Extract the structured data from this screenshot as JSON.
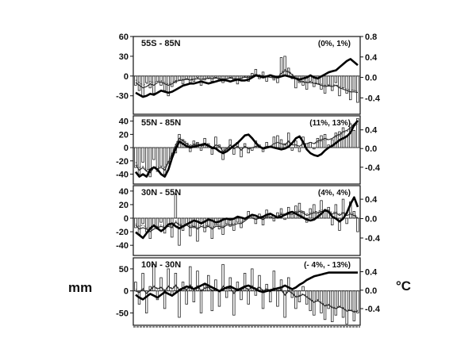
{
  "units": {
    "left": "mm",
    "right": "°C"
  },
  "chart_data": [
    {
      "type": "bar",
      "region": "55S - 85N",
      "percentages": "(0%, 1%)",
      "left_ticks": [
        "60",
        "30",
        "0",
        "-30"
      ],
      "left_tick_values": [
        60,
        30,
        0,
        -30
      ],
      "left_range": [
        -58,
        60
      ],
      "right_ticks": [
        "0.8",
        "0.4",
        "0.0",
        "-0.4"
      ],
      "right_tick_values": [
        0.8,
        0.4,
        0.0,
        -0.4
      ],
      "right_range": [
        -0.72,
        0.8
      ],
      "precip_bars": [
        -14,
        -22,
        -30,
        -10,
        -18,
        -26,
        -8,
        -14,
        -22,
        -30,
        -16,
        -10,
        -6,
        -12,
        -4,
        -10,
        -8,
        -2,
        -14,
        -6,
        -4,
        -8,
        -2,
        -6,
        -10,
        -4,
        -2,
        -6,
        -12,
        -4,
        -2,
        -8,
        4,
        10,
        -4,
        6,
        -8,
        2,
        -6,
        -10,
        28,
        30,
        12,
        -4,
        -18,
        -10,
        -14,
        -20,
        -8,
        -16,
        -12,
        -20,
        -26,
        -14,
        -22,
        -10,
        -30,
        -18,
        -26,
        -36,
        -22,
        -40
      ],
      "precip_smooth": [
        -10,
        -14,
        -18,
        -16,
        -12,
        -14,
        -10,
        -9,
        -12,
        -14,
        -12,
        -8,
        -7,
        -6,
        -5,
        -6,
        -5,
        -4,
        -5,
        -4,
        -3,
        -4,
        -3,
        -4,
        -5,
        -4,
        -3,
        -4,
        -5,
        -3,
        -2,
        -2,
        0,
        2,
        1,
        0,
        -1,
        -2,
        -3,
        -2,
        4,
        8,
        6,
        2,
        -4,
        -8,
        -9,
        -10,
        -10,
        -11,
        -12,
        -14,
        -16,
        -15,
        -16,
        -14,
        -18,
        -20,
        -22,
        -24,
        -24,
        -25
      ],
      "precip_smooth2": [
        -6,
        -10,
        -14,
        -12,
        -8,
        -10,
        -8,
        -7,
        -10,
        -12,
        -10,
        -7,
        -6,
        -5,
        -4,
        -5,
        -4,
        -3,
        -5,
        -4,
        -3,
        -3,
        -2,
        -3,
        -4,
        -4,
        -2,
        -3,
        -4,
        -3,
        -1,
        -1,
        1,
        3,
        2,
        1,
        0,
        -1,
        -2,
        -1,
        6,
        10,
        8,
        3,
        -2,
        -6,
        -8,
        -9,
        -9,
        -10,
        -11,
        -12,
        -14,
        -13,
        -14,
        -13,
        -16,
        -18,
        -20,
        -21,
        -22,
        -23
      ],
      "temp_smooth": [
        -0.3,
        -0.34,
        -0.38,
        -0.36,
        -0.32,
        -0.34,
        -0.3,
        -0.26,
        -0.28,
        -0.3,
        -0.28,
        -0.24,
        -0.2,
        -0.16,
        -0.14,
        -0.12,
        -0.12,
        -0.1,
        -0.08,
        -0.1,
        -0.12,
        -0.1,
        -0.08,
        -0.06,
        -0.05,
        -0.06,
        -0.08,
        -0.06,
        -0.04,
        -0.06,
        -0.06,
        -0.04,
        0.0,
        0.04,
        0.02,
        0.0,
        0.02,
        0.04,
        0.02,
        0.0,
        0.02,
        0.04,
        0.02,
        0.0,
        -0.02,
        -0.04,
        -0.02,
        0.0,
        0.04,
        0.0,
        -0.02,
        0.02,
        0.06,
        0.1,
        0.12,
        0.14,
        0.2,
        0.26,
        0.32,
        0.36,
        0.3,
        0.24
      ]
    },
    {
      "type": "bar",
      "region": "55N - 85N",
      "percentages": "(11%, 13%)",
      "left_ticks": [
        "40",
        "20",
        "0",
        "-20",
        "-40"
      ],
      "left_tick_values": [
        40,
        20,
        0,
        -20,
        -40
      ],
      "left_range": [
        -55,
        48
      ],
      "right_ticks": [
        "0.4",
        "0.0",
        "-0.4"
      ],
      "right_tick_values": [
        0.4,
        0.0,
        -0.4
      ],
      "right_range": [
        -0.76,
        0.7
      ],
      "precip_bars": [
        -30,
        -40,
        -22,
        -34,
        -44,
        -18,
        -36,
        -28,
        -40,
        -24,
        -12,
        -8,
        20,
        12,
        6,
        -6,
        10,
        8,
        -4,
        14,
        6,
        -10,
        16,
        4,
        -18,
        -6,
        12,
        -10,
        8,
        -14,
        6,
        -8,
        -4,
        10,
        4,
        -6,
        8,
        2,
        16,
        18,
        12,
        6,
        22,
        -4,
        10,
        -6,
        16,
        6,
        8,
        -2,
        14,
        18,
        20,
        4,
        12,
        22,
        24,
        30,
        18,
        36,
        26,
        44
      ],
      "precip_smooth": [
        -26,
        -34,
        -30,
        -36,
        -38,
        -30,
        -32,
        -30,
        -34,
        -22,
        -10,
        4,
        14,
        10,
        6,
        2,
        4,
        6,
        2,
        4,
        2,
        -2,
        4,
        2,
        -6,
        -2,
        4,
        -2,
        2,
        -4,
        2,
        -2,
        0,
        2,
        2,
        0,
        2,
        2,
        6,
        8,
        6,
        4,
        10,
        4,
        4,
        2,
        6,
        6,
        8,
        6,
        10,
        12,
        14,
        12,
        14,
        18,
        20,
        24,
        26,
        30,
        36,
        40
      ],
      "precip_smooth2": [
        -22,
        -30,
        -28,
        -32,
        -34,
        -28,
        -30,
        -28,
        -30,
        -20,
        -8,
        6,
        16,
        12,
        8,
        4,
        6,
        6,
        4,
        6,
        4,
        0,
        4,
        2,
        -4,
        0,
        4,
        0,
        2,
        -2,
        2,
        0,
        0,
        2,
        2,
        0,
        2,
        2,
        6,
        8,
        6,
        4,
        8,
        4,
        4,
        2,
        6,
        6,
        8,
        6,
        8,
        10,
        12,
        12,
        14,
        16,
        18,
        22,
        24,
        28,
        32,
        36
      ],
      "temp_smooth": [
        -0.5,
        -0.6,
        -0.55,
        -0.6,
        -0.45,
        -0.4,
        -0.45,
        -0.55,
        -0.6,
        -0.45,
        -0.2,
        0.0,
        0.15,
        0.1,
        0.05,
        0.02,
        0.04,
        0.06,
        0.08,
        0.1,
        0.06,
        0.02,
        0.0,
        -0.06,
        -0.1,
        -0.06,
        0.0,
        0.06,
        0.12,
        0.2,
        0.28,
        0.3,
        0.22,
        0.12,
        0.04,
        0.0,
        0.02,
        0.04,
        0.02,
        0.0,
        -0.02,
        0.0,
        0.04,
        0.12,
        0.22,
        0.26,
        0.14,
        -0.02,
        -0.1,
        -0.14,
        -0.16,
        -0.12,
        -0.04,
        0.02,
        0.06,
        0.12,
        0.18,
        0.22,
        0.26,
        0.34,
        0.5,
        0.6
      ]
    },
    {
      "type": "bar",
      "region": "30N - 55N",
      "percentages": "(4%, 4%)",
      "left_ticks": [
        "40",
        "20",
        "0",
        "-20",
        "-40"
      ],
      "left_tick_values": [
        40,
        20,
        0,
        -20,
        -40
      ],
      "left_range": [
        -55,
        48
      ],
      "right_ticks": [
        "0.4",
        "0.0",
        "-0.4"
      ],
      "right_tick_values": [
        0.4,
        0.0,
        -0.4
      ],
      "right_range": [
        -0.76,
        0.68
      ],
      "precip_bars": [
        -14,
        -24,
        -8,
        -20,
        -30,
        -12,
        -16,
        -6,
        -22,
        -10,
        -28,
        36,
        -40,
        -18,
        -8,
        -26,
        -14,
        -34,
        -6,
        -20,
        -12,
        -30,
        -10,
        -16,
        -24,
        -8,
        -12,
        -18,
        -6,
        -14,
        -2,
        10,
        4,
        -8,
        6,
        -10,
        12,
        2,
        -4,
        8,
        14,
        -2,
        16,
        6,
        18,
        22,
        10,
        -6,
        14,
        20,
        8,
        26,
        12,
        16,
        -10,
        20,
        -18,
        28,
        -8,
        24,
        10,
        -20
      ],
      "precip_smooth": [
        -10,
        -16,
        -14,
        -16,
        -20,
        -16,
        -14,
        -12,
        -14,
        -12,
        -14,
        -6,
        -10,
        -12,
        -10,
        -14,
        -12,
        -16,
        -12,
        -14,
        -12,
        -16,
        -12,
        -12,
        -14,
        -10,
        -10,
        -10,
        -8,
        -8,
        -4,
        0,
        0,
        -2,
        0,
        -2,
        2,
        2,
        0,
        2,
        6,
        4,
        6,
        6,
        8,
        10,
        8,
        4,
        6,
        8,
        8,
        10,
        10,
        10,
        6,
        8,
        4,
        8,
        4,
        6,
        4,
        0
      ],
      "precip_smooth2": [
        -8,
        -12,
        -10,
        -14,
        -18,
        -14,
        -12,
        -10,
        -12,
        -10,
        -12,
        -4,
        -8,
        -10,
        -8,
        -12,
        -10,
        -14,
        -10,
        -12,
        -10,
        -14,
        -10,
        -10,
        -12,
        -8,
        -8,
        -8,
        -6,
        -6,
        -2,
        2,
        2,
        0,
        2,
        0,
        4,
        4,
        2,
        4,
        8,
        6,
        8,
        8,
        10,
        12,
        10,
        6,
        8,
        10,
        10,
        12,
        12,
        12,
        8,
        10,
        6,
        10,
        6,
        8,
        6,
        2
      ],
      "temp_smooth": [
        -0.28,
        -0.34,
        -0.4,
        -0.3,
        -0.2,
        -0.14,
        -0.2,
        -0.26,
        -0.2,
        -0.12,
        -0.1,
        -0.16,
        -0.2,
        -0.16,
        -0.12,
        -0.08,
        -0.04,
        -0.06,
        -0.1,
        -0.06,
        -0.02,
        -0.04,
        -0.08,
        -0.06,
        -0.02,
        0.0,
        -0.02,
        0.0,
        0.04,
        0.02,
        0.0,
        0.04,
        0.08,
        0.06,
        0.02,
        0.04,
        0.08,
        0.1,
        0.06,
        0.02,
        0.04,
        0.08,
        0.12,
        0.14,
        0.1,
        0.06,
        0.02,
        -0.02,
        -0.04,
        -0.02,
        0.04,
        0.1,
        0.18,
        0.14,
        0.04,
        0.0,
        -0.06,
        0.0,
        0.12,
        0.3,
        0.44,
        0.24
      ]
    },
    {
      "type": "bar",
      "region": "10N - 30N",
      "percentages": "(- 4%, - 13%)",
      "left_ticks": [
        "50",
        "0",
        "-50"
      ],
      "left_tick_values": [
        50,
        0,
        -50
      ],
      "left_range": [
        -78,
        75
      ],
      "right_ticks": [
        "0.4",
        "0.0",
        "-0.4"
      ],
      "right_tick_values": [
        0.4,
        0.0,
        -0.4
      ],
      "right_range": [
        -0.76,
        0.7
      ],
      "precip_bars": [
        20,
        -30,
        40,
        -50,
        10,
        60,
        -20,
        30,
        -40,
        50,
        -10,
        40,
        -60,
        20,
        -30,
        55,
        -25,
        45,
        -50,
        15,
        35,
        -45,
        25,
        -35,
        60,
        -15,
        30,
        -55,
        20,
        -20,
        40,
        -30,
        50,
        -10,
        35,
        -40,
        15,
        -25,
        45,
        -35,
        25,
        -60,
        30,
        -15,
        -40,
        -25,
        10,
        -30,
        -45,
        -55,
        -20,
        -50,
        -65,
        -40,
        -70,
        -55,
        -35,
        -60,
        -75,
        -45,
        -68,
        -50
      ],
      "precip_smooth": [
        0,
        -4,
        4,
        -6,
        2,
        10,
        4,
        8,
        0,
        10,
        4,
        12,
        2,
        6,
        2,
        12,
        4,
        10,
        0,
        6,
        8,
        0,
        4,
        -2,
        10,
        4,
        6,
        -6,
        4,
        2,
        8,
        2,
        10,
        4,
        8,
        0,
        4,
        -2,
        6,
        0,
        2,
        -10,
        0,
        -6,
        -14,
        -12,
        -8,
        -14,
        -20,
        -26,
        -22,
        -28,
        -34,
        -32,
        -38,
        -40,
        -36,
        -40,
        -46,
        -44,
        -48,
        -46
      ],
      "precip_smooth2": [
        4,
        -2,
        6,
        -4,
        4,
        12,
        6,
        10,
        2,
        12,
        6,
        14,
        4,
        8,
        4,
        14,
        6,
        12,
        2,
        8,
        10,
        2,
        6,
        0,
        12,
        6,
        8,
        -4,
        6,
        4,
        10,
        4,
        12,
        6,
        10,
        2,
        6,
        0,
        8,
        2,
        4,
        -8,
        2,
        -4,
        -12,
        -10,
        -6,
        -12,
        -18,
        -24,
        -20,
        -26,
        -32,
        -30,
        -36,
        -38,
        -34,
        -38,
        -44,
        -42,
        -46,
        -44
      ],
      "temp_smooth": [
        -0.1,
        -0.16,
        -0.2,
        -0.14,
        -0.08,
        -0.12,
        -0.16,
        -0.1,
        -0.04,
        -0.08,
        -0.12,
        -0.06,
        0.0,
        0.04,
        0.08,
        0.06,
        0.02,
        0.06,
        0.1,
        0.14,
        0.1,
        0.06,
        0.02,
        -0.02,
        0.02,
        0.06,
        0.08,
        0.04,
        0.0,
        0.04,
        0.08,
        0.1,
        0.06,
        0.02,
        -0.02,
        -0.04,
        -0.02,
        0.0,
        0.02,
        0.04,
        0.06,
        0.1,
        0.06,
        0.02,
        0.06,
        0.12,
        0.16,
        0.22,
        0.26,
        0.3,
        0.32,
        0.34,
        0.36,
        0.38,
        0.38,
        0.38,
        0.38,
        0.38,
        0.38,
        0.38,
        0.38,
        0.38
      ]
    }
  ]
}
